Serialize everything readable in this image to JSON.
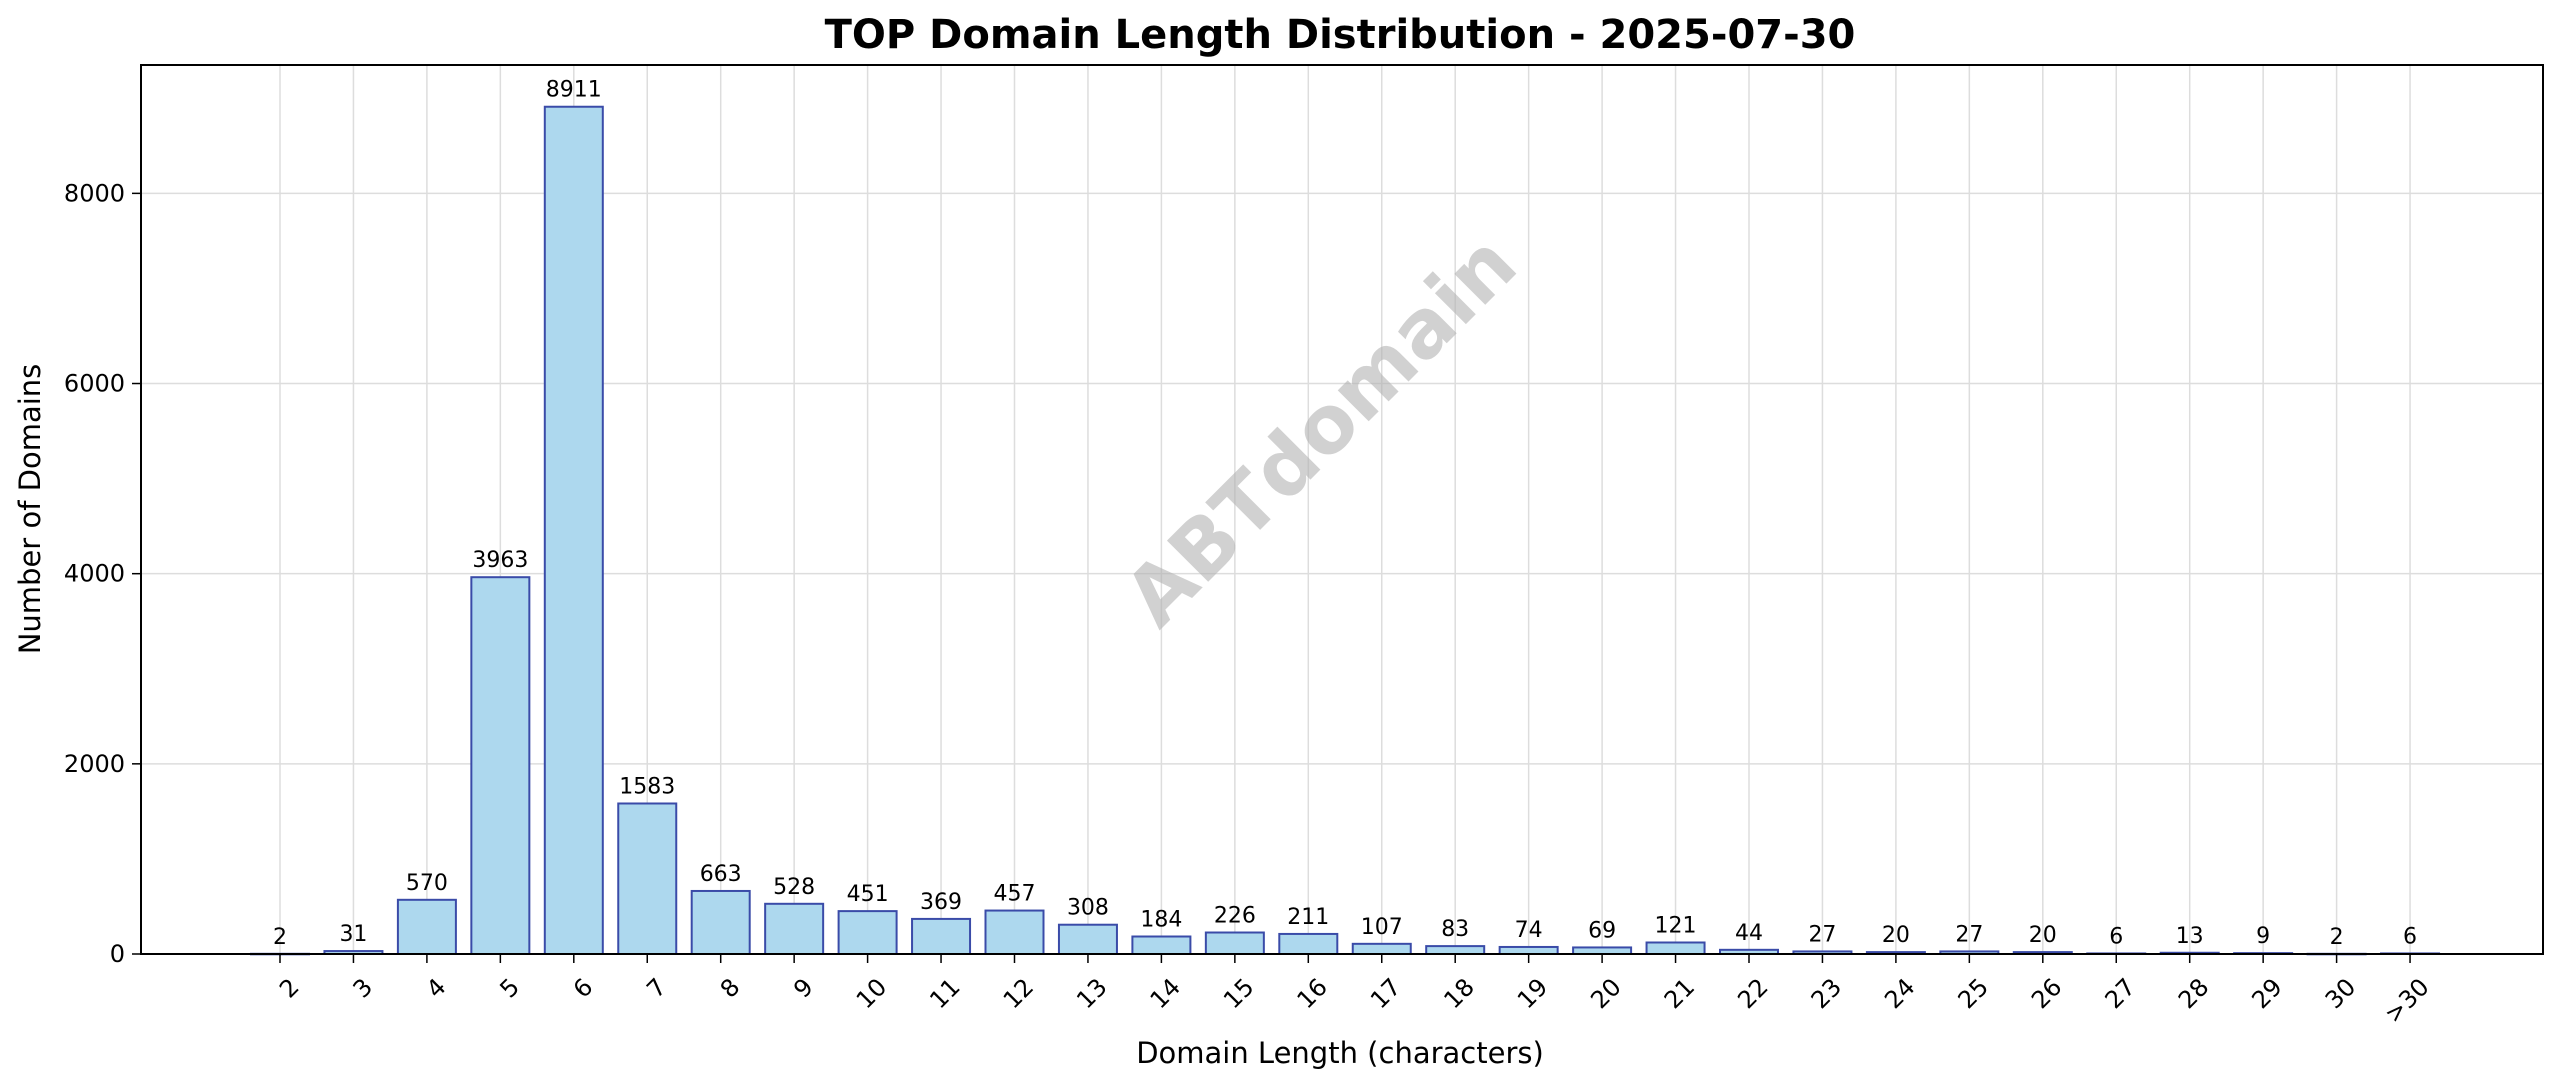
{
  "chart_data": {
    "type": "bar",
    "title": "TOP Domain Length Distribution - 2025-07-30",
    "xlabel": "Domain Length (characters)",
    "ylabel": "Number of Domains",
    "categories": [
      "2",
      "3",
      "4",
      "5",
      "6",
      "7",
      "8",
      "9",
      "10",
      "11",
      "12",
      "13",
      "14",
      "15",
      "16",
      "17",
      "18",
      "19",
      "20",
      "21",
      "22",
      "23",
      "24",
      "25",
      "26",
      "27",
      "28",
      "29",
      "30",
      ">30"
    ],
    "values": [
      2,
      31,
      570,
      3963,
      8911,
      1583,
      663,
      528,
      451,
      369,
      457,
      308,
      184,
      226,
      211,
      107,
      83,
      74,
      69,
      121,
      44,
      27,
      20,
      27,
      20,
      6,
      13,
      9,
      2,
      6
    ],
    "ylim": [
      0,
      9350
    ],
    "yticks": [
      0,
      2000,
      4000,
      6000,
      8000
    ],
    "grid": true,
    "bar_fill": "#add8ee",
    "bar_stroke": "#3a4ba8",
    "watermark": "ABTdomain"
  }
}
